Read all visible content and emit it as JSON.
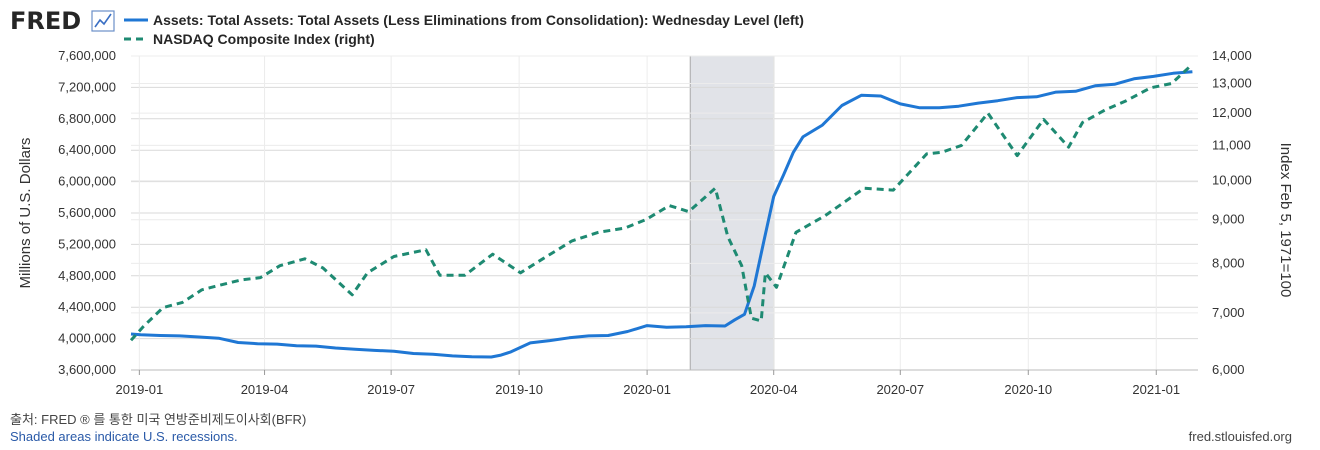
{
  "header": {
    "logo": "FRED",
    "logo_icon": "trend-line-icon"
  },
  "legend": [
    {
      "label": "Assets: Total Assets: Total Assets (Less Eliminations from Consolidation): Wednesday Level (left)",
      "style": "solid",
      "color": "#1f77d4"
    },
    {
      "label": "NASDAQ Composite Index (right)",
      "style": "dashed",
      "color": "#1e8a72"
    }
  ],
  "footer": {
    "source": "출처: FRED ® 를 통한 미국 연방준비제도이사회(BFR)",
    "recession_note": "Shaded areas indicate U.S. recessions.",
    "url": "fred.stlouisfed.org"
  },
  "chart_data": {
    "type": "line",
    "title": "",
    "y_left_label": "Millions of U.S. Dollars",
    "y_right_label": "Index Feb 5, 1971=100",
    "x_ticks": [
      "2019-01",
      "2019-04",
      "2019-07",
      "2019-10",
      "2020-01",
      "2020-04",
      "2020-07",
      "2020-10",
      "2021-01"
    ],
    "x_range": [
      "2018-12-26",
      "2021-01-31"
    ],
    "y_left_ticks": [
      3600000,
      4000000,
      4400000,
      4800000,
      5200000,
      5600000,
      6000000,
      6400000,
      6800000,
      7200000,
      7600000
    ],
    "y_left_range": [
      3600000,
      7600000
    ],
    "y_right_ticks": [
      6000,
      7000,
      8000,
      9000,
      10000,
      11000,
      12000,
      13000,
      14000
    ],
    "y_right_range": [
      6000,
      14000
    ],
    "y_right_scale": "log",
    "recession": {
      "start": "2020-02-01",
      "end": "2020-04-01",
      "color": "#e1e3e8"
    },
    "grid": true,
    "legend_position": "top-left",
    "series": [
      {
        "name": "Assets: Total Assets: Total Assets (Less Eliminations from Consolidation): Wednesday Level (left)",
        "axis": "left",
        "color": "#1f77d4",
        "points": [
          [
            "2018-12-26",
            4058000
          ],
          [
            "2019-01-02",
            4050000
          ],
          [
            "2019-01-16",
            4040000
          ],
          [
            "2019-01-30",
            4035000
          ],
          [
            "2019-02-13",
            4020000
          ],
          [
            "2019-02-27",
            4005000
          ],
          [
            "2019-03-13",
            3950000
          ],
          [
            "2019-03-27",
            3935000
          ],
          [
            "2019-04-10",
            3930000
          ],
          [
            "2019-04-24",
            3910000
          ],
          [
            "2019-05-08",
            3905000
          ],
          [
            "2019-05-22",
            3880000
          ],
          [
            "2019-06-05",
            3865000
          ],
          [
            "2019-06-19",
            3850000
          ],
          [
            "2019-07-03",
            3840000
          ],
          [
            "2019-07-17",
            3810000
          ],
          [
            "2019-07-31",
            3800000
          ],
          [
            "2019-08-14",
            3780000
          ],
          [
            "2019-08-28",
            3770000
          ],
          [
            "2019-09-11",
            3765000
          ],
          [
            "2019-09-18",
            3790000
          ],
          [
            "2019-09-25",
            3830000
          ],
          [
            "2019-10-09",
            3945000
          ],
          [
            "2019-10-23",
            3975000
          ],
          [
            "2019-11-06",
            4010000
          ],
          [
            "2019-11-20",
            4035000
          ],
          [
            "2019-12-04",
            4040000
          ],
          [
            "2019-12-18",
            4090000
          ],
          [
            "2020-01-01",
            4165000
          ],
          [
            "2020-01-15",
            4145000
          ],
          [
            "2020-01-29",
            4150000
          ],
          [
            "2020-02-12",
            4165000
          ],
          [
            "2020-02-26",
            4160000
          ],
          [
            "2020-03-04",
            4240000
          ],
          [
            "2020-03-11",
            4310000
          ],
          [
            "2020-03-18",
            4670000
          ],
          [
            "2020-03-25",
            5250000
          ],
          [
            "2020-04-01",
            5810000
          ],
          [
            "2020-04-08",
            6080000
          ],
          [
            "2020-04-15",
            6370000
          ],
          [
            "2020-04-22",
            6570000
          ],
          [
            "2020-05-06",
            6720000
          ],
          [
            "2020-05-20",
            6970000
          ],
          [
            "2020-06-03",
            7100000
          ],
          [
            "2020-06-17",
            7090000
          ],
          [
            "2020-07-01",
            6990000
          ],
          [
            "2020-07-15",
            6940000
          ],
          [
            "2020-07-29",
            6940000
          ],
          [
            "2020-08-12",
            6960000
          ],
          [
            "2020-08-26",
            7000000
          ],
          [
            "2020-09-09",
            7030000
          ],
          [
            "2020-09-23",
            7070000
          ],
          [
            "2020-10-07",
            7080000
          ],
          [
            "2020-10-21",
            7140000
          ],
          [
            "2020-11-04",
            7150000
          ],
          [
            "2020-11-18",
            7220000
          ],
          [
            "2020-12-02",
            7240000
          ],
          [
            "2020-12-16",
            7310000
          ],
          [
            "2020-12-30",
            7340000
          ],
          [
            "2021-01-13",
            7380000
          ],
          [
            "2021-01-27",
            7400000
          ]
        ]
      },
      {
        "name": "NASDAQ Composite Index (right)",
        "axis": "right",
        "color": "#1e8a72",
        "points": [
          [
            "2018-12-26",
            6500
          ],
          [
            "2019-01-04",
            6750
          ],
          [
            "2019-01-18",
            7100
          ],
          [
            "2019-02-01",
            7200
          ],
          [
            "2019-02-15",
            7450
          ],
          [
            "2019-03-01",
            7550
          ],
          [
            "2019-03-15",
            7650
          ],
          [
            "2019-03-29",
            7700
          ],
          [
            "2019-04-12",
            7950
          ],
          [
            "2019-04-30",
            8100
          ],
          [
            "2019-05-13",
            7900
          ],
          [
            "2019-06-03",
            7350
          ],
          [
            "2019-06-14",
            7800
          ],
          [
            "2019-07-03",
            8150
          ],
          [
            "2019-07-26",
            8300
          ],
          [
            "2019-08-05",
            7750
          ],
          [
            "2019-08-23",
            7750
          ],
          [
            "2019-09-12",
            8200
          ],
          [
            "2019-10-02",
            7800
          ],
          [
            "2019-10-18",
            8100
          ],
          [
            "2019-11-08",
            8500
          ],
          [
            "2019-11-27",
            8700
          ],
          [
            "2019-12-16",
            8800
          ],
          [
            "2019-12-31",
            9000
          ],
          [
            "2020-01-17",
            9350
          ],
          [
            "2020-01-31",
            9200
          ],
          [
            "2020-02-19",
            9800
          ],
          [
            "2020-02-28",
            8600
          ],
          [
            "2020-03-09",
            7950
          ],
          [
            "2020-03-16",
            6900
          ],
          [
            "2020-03-23",
            6850
          ],
          [
            "2020-03-26",
            7800
          ],
          [
            "2020-04-03",
            7500
          ],
          [
            "2020-04-17",
            8700
          ],
          [
            "2020-05-08",
            9100
          ],
          [
            "2020-06-05",
            9800
          ],
          [
            "2020-06-26",
            9750
          ],
          [
            "2020-07-20",
            10750
          ],
          [
            "2020-07-31",
            10800
          ],
          [
            "2020-08-14",
            11000
          ],
          [
            "2020-09-02",
            12000
          ],
          [
            "2020-09-23",
            10700
          ],
          [
            "2020-10-12",
            11800
          ],
          [
            "2020-10-30",
            10950
          ],
          [
            "2020-11-09",
            11700
          ],
          [
            "2020-11-25",
            12100
          ],
          [
            "2020-12-10",
            12400
          ],
          [
            "2020-12-28",
            12850
          ],
          [
            "2021-01-12",
            13000
          ],
          [
            "2021-01-25",
            13600
          ]
        ]
      }
    ]
  }
}
